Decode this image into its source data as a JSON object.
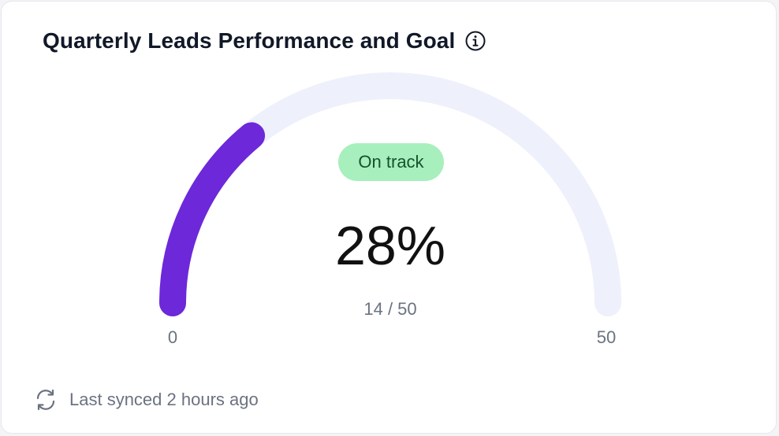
{
  "card": {
    "title": "Quarterly Leads Performance and Goal",
    "info_icon": "info-circle-icon",
    "status_badge": "On track",
    "percent_label": "28%",
    "fraction_label": "14 / 50",
    "footer": {
      "icon": "sync-icon",
      "text": "Last synced 2 hours ago"
    }
  },
  "colors": {
    "progress": "#6d28d9",
    "track": "#eef0fb",
    "badge_bg": "#a7efbd",
    "badge_text": "#14532d"
  },
  "chart_data": {
    "type": "gauge",
    "title": "Quarterly Leads Performance and Goal",
    "min": 0,
    "max": 50,
    "value": 14,
    "percent": 28,
    "min_label": "0",
    "max_label": "50",
    "status": "On track"
  }
}
